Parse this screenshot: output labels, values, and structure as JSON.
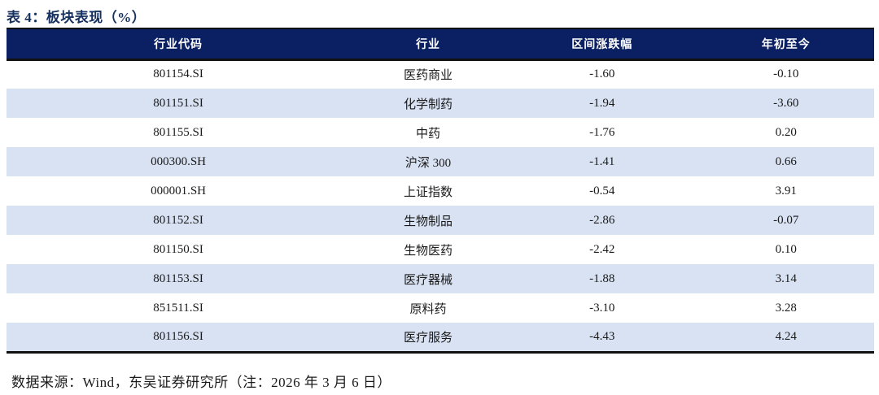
{
  "title": "表 4：板块表现（%）",
  "table": {
    "columns": [
      "行业代码",
      "行业",
      "区间涨跌幅",
      "年初至今"
    ],
    "rows": [
      [
        "801154.SI",
        "医药商业",
        "-1.60",
        "-0.10"
      ],
      [
        "801151.SI",
        "化学制药",
        "-1.94",
        "-3.60"
      ],
      [
        "801155.SI",
        "中药",
        "-1.76",
        "0.20"
      ],
      [
        "000300.SH",
        "沪深 300",
        "-1.41",
        "0.66"
      ],
      [
        "000001.SH",
        "上证指数",
        "-0.54",
        "3.91"
      ],
      [
        "801152.SI",
        "生物制品",
        "-2.86",
        "-0.07"
      ],
      [
        "801150.SI",
        "生物医药",
        "-2.42",
        "0.10"
      ],
      [
        "801153.SI",
        "医疗器械",
        "-1.88",
        "3.14"
      ],
      [
        "851511.SI",
        "原料药",
        "-3.10",
        "3.28"
      ],
      [
        "801156.SI",
        "医疗服务",
        "-4.43",
        "4.24"
      ]
    ]
  },
  "footer": "数据来源：Wind，东吴证券研究所（注：2026 年 3 月 6 日）",
  "colors": {
    "header_bg": "#0a2063",
    "alt_row_bg": "#d8e2f3",
    "title_color": "#16305f",
    "border_color": "#111111"
  }
}
